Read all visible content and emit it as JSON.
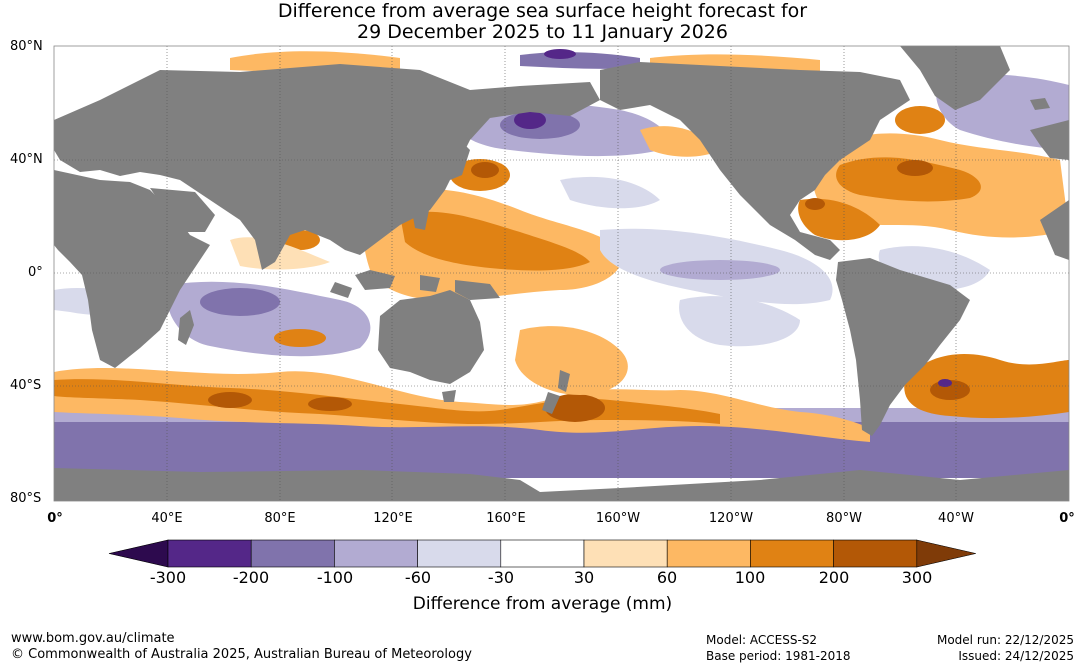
{
  "title": {
    "line1": "Difference from average sea surface height forecast for",
    "line2": "29 December 2025 to 11 January 2026"
  },
  "map": {
    "lat_labels": [
      "80°N",
      "40°N",
      "0°",
      "40°S",
      "80°S"
    ],
    "lon_labels": [
      "0°",
      "40°E",
      "80°E",
      "120°E",
      "160°E",
      "160°W",
      "120°W",
      "80°W",
      "40°W",
      "0°"
    ],
    "colors": {
      "land": "#808080",
      "ocean_neutral": "#ffffff",
      "grid": "#555555"
    }
  },
  "colorbar": {
    "tick_labels": [
      "-300",
      "-200",
      "-100",
      "-60",
      "-30",
      "30",
      "60",
      "100",
      "200",
      "300"
    ],
    "colors": [
      "#2d0a4e",
      "#542788",
      "#8073ac",
      "#b2abd2",
      "#d8daeb",
      "#ffffff",
      "#fee0b6",
      "#fdb863",
      "#e08214",
      "#b35806",
      "#7f3b08"
    ],
    "title": "Difference from average (mm)"
  },
  "footer": {
    "website": "www.bom.gov.au/climate",
    "copyright": "© Commonwealth of Australia 2025, Australian Bureau of Meteorology",
    "model": "Model: ACCESS-S2",
    "base_period": "Base period: 1981-2018",
    "model_run": "Model run: 22/12/2025",
    "issued": "Issued: 24/12/2025"
  }
}
